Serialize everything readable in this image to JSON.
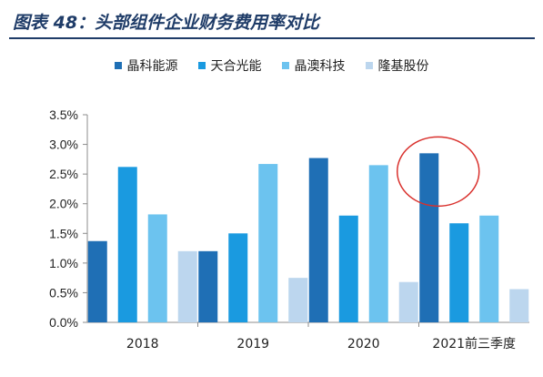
{
  "title": "图表 48：头部组件企业财务费用率对比",
  "chart_data": {
    "type": "bar",
    "categories": [
      "2018",
      "2019",
      "2020",
      "2021前三季度"
    ],
    "series": [
      {
        "name": "晶科能源",
        "color": "#1f6fb5",
        "values": [
          1.37,
          1.2,
          2.77,
          2.85
        ]
      },
      {
        "name": "天合光能",
        "color": "#1a9ae0",
        "values": [
          2.62,
          1.5,
          1.8,
          1.67
        ]
      },
      {
        "name": "晶澳科技",
        "color": "#6cc3ef",
        "values": [
          1.82,
          2.67,
          2.65,
          1.8
        ]
      },
      {
        "name": "隆基股份",
        "color": "#bcd6ee",
        "values": [
          1.2,
          0.75,
          0.68,
          0.56
        ]
      }
    ],
    "yticks": [
      "0.0%",
      "0.5%",
      "1.0%",
      "1.5%",
      "2.0%",
      "2.5%",
      "3.0%",
      "3.5%"
    ],
    "ylim": [
      0,
      3.5
    ],
    "grid": false,
    "legend_position": "top",
    "highlight": {
      "category": "2021前三季度",
      "series": "晶科能源",
      "shape": "circle",
      "color": "#d9302c"
    }
  }
}
